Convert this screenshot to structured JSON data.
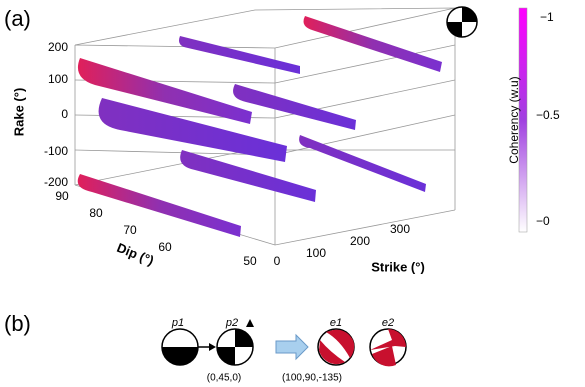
{
  "panel_a": {
    "label": "(a)",
    "rake_axis": {
      "title": "Rake (°)",
      "ticks": [
        "200",
        "100",
        "0",
        "-100",
        "-200"
      ]
    },
    "dip_axis": {
      "title": "Dip (°)",
      "ticks": [
        "90",
        "80",
        "70",
        "60",
        "50"
      ]
    },
    "strike_axis": {
      "title": "Strike (°)",
      "ticks": [
        "0",
        "100",
        "200",
        "300"
      ]
    },
    "colorbar": {
      "title": "Coherency (w.u)",
      "ticks": [
        "−1",
        "−0.5",
        "−0"
      ]
    }
  },
  "panel_b": {
    "label": "(b)",
    "mechanisms": [
      "p1",
      "p2",
      "e1",
      "e2"
    ],
    "parameters": [
      "(0,45,0)",
      "(100,90,-135)"
    ]
  }
}
